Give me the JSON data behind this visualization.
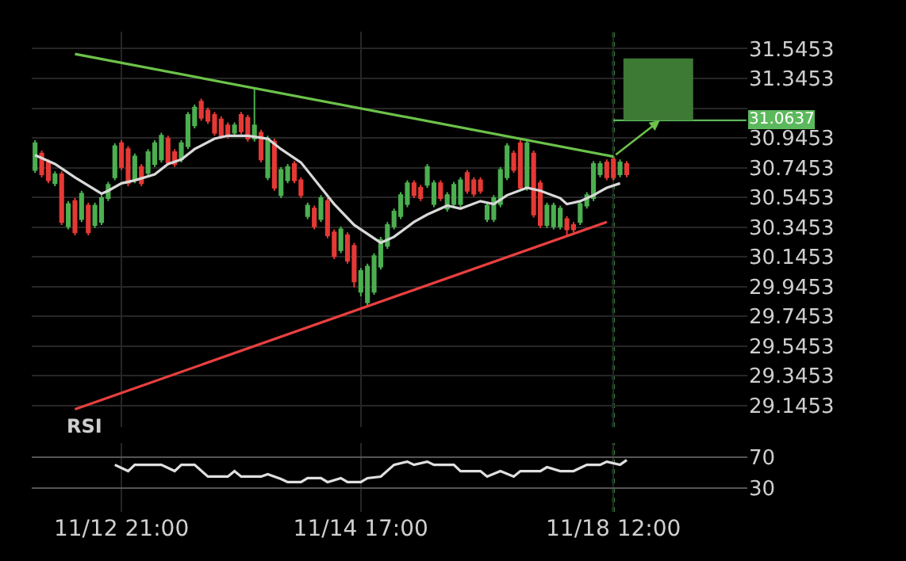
{
  "chart_data": [
    {
      "type": "candlestick",
      "categories": [
        null,
        null,
        null,
        null,
        null,
        null,
        null,
        null,
        null,
        null,
        null,
        null,
        null,
        "11/12 21:00",
        null,
        null,
        null,
        null,
        null,
        null,
        null,
        null,
        null,
        null,
        null,
        null,
        null,
        null,
        null,
        null,
        null,
        null,
        null,
        null,
        null,
        null,
        null,
        null,
        null,
        null,
        null,
        null,
        null,
        null,
        null,
        null,
        null,
        null,
        null,
        "11/14 17:00",
        null,
        null,
        null,
        null,
        null,
        null,
        null,
        null,
        null,
        null,
        null,
        null,
        null,
        null,
        null,
        null,
        null,
        null,
        null,
        null,
        null,
        null,
        null,
        null,
        null,
        null,
        null,
        null,
        null,
        null,
        null,
        null,
        null,
        null,
        null,
        null,
        null,
        "11/18 12:00",
        null,
        null,
        null,
        null,
        null,
        null,
        null,
        null,
        null,
        null,
        null,
        null,
        null,
        null,
        null,
        null,
        null,
        null,
        null,
        null
      ],
      "ohlc": [
        [
          30.73,
          30.93,
          30.71,
          30.91
        ],
        [
          30.84,
          30.86,
          30.68,
          30.7
        ],
        [
          30.78,
          30.8,
          30.64,
          30.66
        ],
        [
          30.64,
          30.72,
          30.62,
          30.7
        ],
        [
          30.7,
          30.72,
          30.36,
          30.38
        ],
        [
          30.35,
          30.52,
          30.33,
          30.5
        ],
        [
          30.52,
          30.54,
          30.29,
          30.31
        ],
        [
          30.4,
          30.59,
          30.38,
          30.57
        ],
        [
          30.49,
          30.51,
          30.29,
          30.31
        ],
        [
          30.36,
          30.51,
          30.34,
          30.49
        ],
        [
          30.38,
          30.56,
          30.36,
          30.54
        ],
        [
          30.54,
          30.65,
          30.52,
          30.63
        ],
        [
          30.68,
          30.91,
          30.66,
          30.89
        ],
        [
          30.91,
          30.93,
          30.73,
          30.75
        ],
        [
          30.87,
          30.89,
          30.62,
          30.64
        ],
        [
          30.66,
          30.84,
          30.64,
          30.82
        ],
        [
          30.75,
          30.77,
          30.62,
          30.64
        ],
        [
          30.71,
          30.87,
          30.69,
          30.85
        ],
        [
          30.77,
          30.93,
          30.75,
          30.91
        ],
        [
          30.8,
          30.98,
          30.78,
          30.96
        ],
        [
          30.94,
          30.96,
          30.76,
          30.78
        ],
        [
          30.85,
          30.87,
          30.75,
          30.77
        ],
        [
          30.8,
          30.93,
          30.78,
          30.91
        ],
        [
          30.89,
          31.12,
          30.87,
          31.1
        ],
        [
          31.03,
          31.17,
          31.01,
          31.15
        ],
        [
          31.19,
          31.21,
          31.06,
          31.08
        ],
        [
          31.13,
          31.15,
          31.04,
          31.06
        ],
        [
          31.1,
          31.12,
          30.96,
          30.98
        ],
        [
          31.07,
          31.09,
          30.94,
          30.96
        ],
        [
          31.03,
          31.05,
          30.94,
          30.96
        ],
        [
          30.98,
          31.05,
          30.96,
          31.03
        ],
        [
          31.1,
          31.12,
          30.97,
          30.99
        ],
        [
          31.08,
          31.1,
          30.92,
          30.94
        ],
        [
          30.94,
          31.28,
          30.92,
          31.03
        ],
        [
          30.98,
          31.0,
          30.78,
          30.8
        ],
        [
          30.68,
          30.96,
          30.66,
          30.94
        ],
        [
          30.92,
          30.94,
          30.59,
          30.61
        ],
        [
          30.56,
          30.75,
          30.54,
          30.73
        ],
        [
          30.66,
          30.77,
          30.64,
          30.75
        ],
        [
          30.77,
          30.79,
          30.64,
          30.66
        ],
        [
          30.66,
          30.68,
          30.54,
          30.56
        ],
        [
          30.42,
          30.51,
          30.4,
          30.49
        ],
        [
          30.47,
          30.49,
          30.33,
          30.35
        ],
        [
          30.4,
          30.56,
          30.38,
          30.54
        ],
        [
          30.52,
          30.54,
          30.27,
          30.29
        ],
        [
          30.31,
          30.33,
          30.13,
          30.15
        ],
        [
          30.19,
          30.35,
          30.17,
          30.33
        ],
        [
          30.29,
          30.31,
          30.1,
          30.12
        ],
        [
          30.22,
          30.24,
          29.94,
          29.98
        ],
        [
          29.91,
          30.07,
          29.88,
          30.05
        ],
        [
          29.84,
          30.1,
          29.82,
          30.08
        ],
        [
          29.91,
          30.17,
          29.89,
          30.15
        ],
        [
          30.08,
          30.28,
          30.06,
          30.26
        ],
        [
          30.22,
          30.38,
          30.2,
          30.36
        ],
        [
          30.35,
          30.47,
          30.33,
          30.45
        ],
        [
          30.42,
          30.58,
          30.4,
          30.56
        ],
        [
          30.5,
          30.66,
          30.48,
          30.64
        ],
        [
          30.64,
          30.66,
          30.54,
          30.56
        ],
        [
          30.61,
          30.63,
          30.52,
          30.54
        ],
        [
          30.63,
          30.77,
          30.61,
          30.75
        ],
        [
          30.5,
          30.66,
          30.48,
          30.64
        ],
        [
          30.64,
          30.66,
          30.52,
          30.54
        ],
        [
          30.47,
          30.58,
          30.45,
          30.56
        ],
        [
          30.5,
          30.65,
          30.48,
          30.63
        ],
        [
          30.5,
          30.68,
          30.48,
          30.66
        ],
        [
          30.71,
          30.73,
          30.57,
          30.59
        ],
        [
          30.66,
          30.68,
          30.55,
          30.57
        ],
        [
          30.66,
          30.68,
          30.57,
          30.59
        ],
        [
          30.4,
          30.51,
          30.38,
          30.49
        ],
        [
          30.4,
          30.56,
          30.38,
          30.54
        ],
        [
          30.5,
          30.75,
          30.48,
          30.73
        ],
        [
          30.68,
          30.91,
          30.66,
          30.89
        ],
        [
          30.84,
          30.86,
          30.71,
          30.73
        ],
        [
          30.91,
          30.93,
          30.59,
          30.61
        ],
        [
          30.61,
          30.93,
          30.59,
          30.91
        ],
        [
          30.84,
          30.86,
          30.41,
          30.43
        ],
        [
          30.64,
          30.66,
          30.34,
          30.36
        ],
        [
          30.36,
          30.51,
          30.34,
          30.49
        ],
        [
          30.35,
          30.51,
          30.33,
          30.49
        ],
        [
          30.35,
          30.49,
          30.33,
          30.47
        ],
        [
          30.4,
          30.42,
          30.29,
          30.33
        ],
        [
          30.36,
          30.38,
          30.31,
          30.33
        ],
        [
          30.38,
          30.52,
          30.36,
          30.5
        ],
        [
          30.49,
          30.58,
          30.47,
          30.56
        ],
        [
          30.54,
          30.79,
          30.52,
          30.77
        ],
        [
          30.7,
          30.79,
          30.68,
          30.77
        ],
        [
          30.78,
          30.8,
          30.66,
          30.68
        ],
        [
          30.8,
          30.82,
          30.66,
          30.68
        ],
        [
          30.7,
          30.8,
          30.68,
          30.78
        ],
        [
          30.77,
          30.79,
          30.68,
          30.7
        ],
        null,
        null,
        null,
        null,
        null,
        null,
        null,
        null,
        null,
        null,
        null,
        null,
        null,
        null,
        null,
        null,
        null,
        null
      ],
      "colors": [
        "#4caf50",
        "#e53935",
        "#e53935",
        "#4caf50",
        "#e53935",
        "#4caf50",
        "#e53935",
        "#4caf50",
        "#e53935",
        "#4caf50",
        "#4caf50",
        "#4caf50",
        "#4caf50",
        "#e53935",
        "#e53935",
        "#4caf50",
        "#e53935",
        "#4caf50",
        "#4caf50",
        "#4caf50",
        "#e53935",
        "#e53935",
        "#4caf50",
        "#4caf50",
        "#4caf50",
        "#e53935",
        "#e53935",
        "#e53935",
        "#e53935",
        "#e53935",
        "#4caf50",
        "#e53935",
        "#e53935",
        "#4caf50",
        "#e53935",
        "#4caf50",
        "#e53935",
        "#4caf50",
        "#4caf50",
        "#e53935",
        "#e53935",
        "#4caf50",
        "#e53935",
        "#4caf50",
        "#e53935",
        "#e53935",
        "#4caf50",
        "#e53935",
        "#e53935",
        "#4caf50",
        "#4caf50",
        "#4caf50",
        "#4caf50",
        "#4caf50",
        "#4caf50",
        "#4caf50",
        "#4caf50",
        "#e53935",
        "#e53935",
        "#4caf50",
        "#4caf50",
        "#e53935",
        "#4caf50",
        "#4caf50",
        "#4caf50",
        "#e53935",
        "#e53935",
        "#e53935",
        "#4caf50",
        "#4caf50",
        "#4caf50",
        "#4caf50",
        "#e53935",
        "#e53935",
        "#4caf50",
        "#e53935",
        "#e53935",
        "#4caf50",
        "#4caf50",
        "#4caf50",
        "#e53935",
        "#e53935",
        "#4caf50",
        "#4caf50",
        "#4caf50",
        "#4caf50",
        "#e53935",
        "#e53935",
        "#4caf50",
        "#e53935",
        null,
        null,
        null,
        null,
        null,
        null,
        null,
        null,
        null,
        null,
        null,
        null,
        null,
        null,
        null,
        null,
        null,
        null
      ],
      "series": [
        {
          "type": "line",
          "color": "#d9d9d9",
          "values": [
            30.83,
            null,
            null,
            30.77,
            null,
            null,
            30.68,
            null,
            null,
            null,
            30.57,
            30.59,
            null,
            30.64,
            null,
            30.66,
            null,
            null,
            30.7,
            null,
            30.77,
            null,
            30.8,
            null,
            30.87,
            null,
            null,
            30.94,
            null,
            30.96,
            null,
            null,
            30.96,
            null,
            null,
            30.94,
            null,
            30.87,
            null,
            null,
            30.78,
            null,
            null,
            null,
            null,
            30.5,
            null,
            null,
            30.36,
            null,
            null,
            null,
            30.24,
            null,
            30.28,
            null,
            null,
            30.38,
            null,
            30.43,
            null,
            null,
            30.49,
            null,
            30.47,
            null,
            null,
            30.52,
            null,
            30.5,
            null,
            30.56,
            null,
            null,
            30.61,
            null,
            30.59,
            null,
            null,
            30.54,
            30.5,
            null,
            30.52,
            null,
            30.56,
            null,
            30.61,
            null,
            30.64,
            null,
            null,
            null,
            null,
            null,
            null,
            null,
            null,
            null,
            null,
            null,
            null,
            null,
            null,
            null,
            null,
            null,
            null,
            null
          ]
        },
        {
          "type": "line",
          "color": "#6cc24a",
          "values": [
            null,
            null,
            null,
            null,
            null,
            null,
            31.51,
            null,
            null,
            null,
            null,
            null,
            null,
            null,
            null,
            null,
            null,
            null,
            null,
            null,
            null,
            null,
            null,
            null,
            null,
            null,
            null,
            null,
            null,
            null,
            null,
            null,
            null,
            null,
            null,
            null,
            null,
            null,
            null,
            null,
            null,
            null,
            null,
            null,
            null,
            null,
            null,
            null,
            null,
            null,
            null,
            null,
            null,
            null,
            null,
            null,
            null,
            null,
            null,
            null,
            null,
            null,
            null,
            null,
            null,
            null,
            null,
            null,
            null,
            null,
            null,
            null,
            null,
            null,
            null,
            null,
            null,
            null,
            null,
            null,
            null,
            null,
            null,
            null,
            null,
            null,
            null,
            30.82,
            null,
            null,
            null,
            null,
            null,
            null,
            null,
            null,
            null,
            null,
            null,
            null,
            null,
            null,
            null,
            null,
            null,
            null,
            null,
            null
          ]
        },
        {
          "type": "line",
          "color": "#e8403f",
          "values": [
            null,
            null,
            null,
            null,
            null,
            null,
            29.12,
            null,
            null,
            null,
            null,
            null,
            null,
            null,
            null,
            null,
            null,
            null,
            null,
            null,
            null,
            null,
            null,
            null,
            null,
            null,
            null,
            null,
            null,
            null,
            null,
            null,
            null,
            null,
            null,
            null,
            null,
            null,
            null,
            null,
            null,
            null,
            null,
            null,
            null,
            null,
            null,
            null,
            null,
            null,
            null,
            null,
            null,
            null,
            null,
            null,
            null,
            null,
            null,
            null,
            null,
            null,
            null,
            null,
            null,
            null,
            null,
            null,
            null,
            null,
            null,
            null,
            null,
            null,
            null,
            null,
            null,
            null,
            null,
            null,
            null,
            null,
            null,
            null,
            null,
            null,
            30.38,
            null,
            null,
            null,
            null,
            null,
            null,
            null,
            null,
            null,
            null,
            null,
            null,
            null,
            null,
            null,
            null,
            null,
            null,
            null,
            null,
            null
          ]
        }
      ],
      "ylim": [
        29.0,
        31.66
      ],
      "yticks": [
        29.1453,
        29.3453,
        29.5453,
        29.7453,
        29.9453,
        30.1453,
        30.3453,
        30.5453,
        30.7453,
        30.9453,
        {
          "value": 31.1453,
          "label": null
        },
        31.3453,
        31.5453
      ],
      "ref_lines": [
        {
          "axis": "x",
          "value": "11/18 12:00",
          "label": null,
          "color": "#4caf50",
          "line_style": "dotted"
        },
        {
          "axis": "y",
          "value": 31.0637,
          "label": "31.0637",
          "color": "#5cb85c"
        }
      ],
      "bands": [
        {
          "axis": "y",
          "from": 31.0637,
          "to": 31.48,
          "label": null,
          "color": "#3d7a34"
        }
      ],
      "grid": true,
      "tick_labels": "y"
    },
    {
      "type": "line",
      "title": "RSI",
      "categories": [
        null,
        null,
        null,
        null,
        null,
        null,
        null,
        null,
        null,
        null,
        null,
        null,
        null,
        "11/12 21:00",
        null,
        null,
        null,
        null,
        null,
        null,
        null,
        null,
        null,
        null,
        null,
        null,
        null,
        null,
        null,
        null,
        null,
        null,
        null,
        null,
        null,
        null,
        null,
        null,
        null,
        null,
        null,
        null,
        null,
        null,
        null,
        null,
        null,
        null,
        null,
        "11/14 17:00",
        null,
        null,
        null,
        null,
        null,
        null,
        null,
        null,
        null,
        null,
        null,
        null,
        null,
        null,
        null,
        null,
        null,
        null,
        null,
        null,
        null,
        null,
        null,
        null,
        null,
        null,
        null,
        null,
        null,
        null,
        null,
        null,
        null,
        null,
        null,
        null,
        null,
        "11/18 12:00",
        null,
        null,
        null,
        null,
        null,
        null,
        null,
        null,
        null,
        null,
        null,
        null,
        null,
        null,
        null,
        null,
        null,
        null,
        null,
        null
      ],
      "series": [
        {
          "color": "#e0e0e0",
          "values": [
            null,
            null,
            null,
            null,
            null,
            null,
            null,
            null,
            null,
            null,
            null,
            null,
            60,
            null,
            52,
            60,
            null,
            null,
            null,
            60,
            null,
            52,
            60,
            null,
            60,
            null,
            45,
            null,
            null,
            45,
            52,
            45,
            null,
            null,
            45,
            48,
            null,
            42,
            38,
            null,
            38,
            43,
            null,
            43,
            38,
            null,
            43,
            38,
            null,
            38,
            43,
            null,
            45,
            null,
            60,
            null,
            64,
            60,
            null,
            64,
            60,
            null,
            null,
            60,
            52,
            null,
            null,
            52,
            45,
            null,
            52,
            null,
            45,
            52,
            null,
            null,
            52,
            57,
            null,
            52,
            null,
            52,
            null,
            60,
            null,
            60,
            64,
            null,
            60,
            66,
            null,
            null,
            null,
            null,
            null,
            null,
            null,
            null,
            null,
            null,
            null,
            null,
            null,
            null,
            null,
            null,
            null,
            null
          ]
        }
      ],
      "ylim": [
        0,
        88
      ],
      "yticks": [
        30,
        70
      ],
      "ref_lines": [
        {
          "axis": "x",
          "value": "11/18 12:00",
          "label": null,
          "color": "#4caf50",
          "line_style": "dotted"
        }
      ],
      "grid": true
    }
  ]
}
